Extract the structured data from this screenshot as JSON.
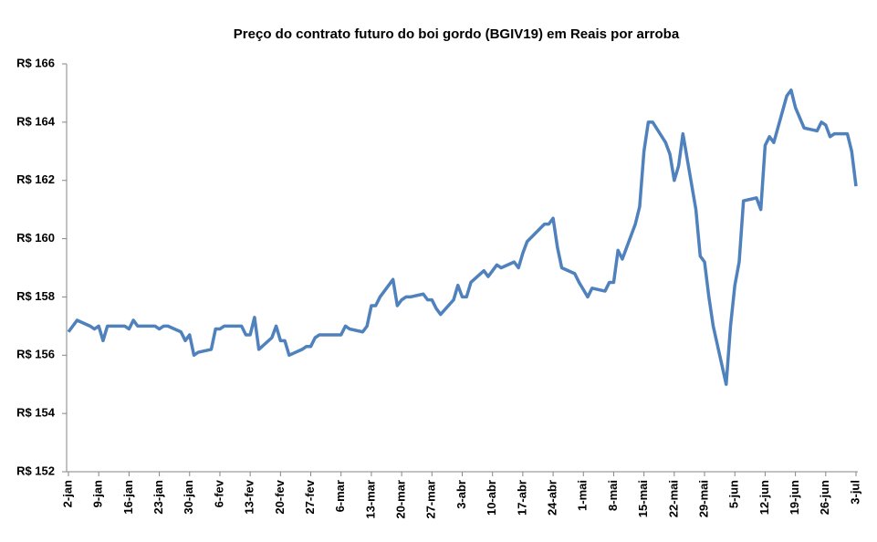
{
  "chart_data": {
    "type": "line",
    "title": "Preço do contrato futuro do boi gordo (BGIV19) em Reais por arroba",
    "x": [
      0,
      1,
      2,
      5,
      6,
      7,
      8,
      9,
      12,
      13,
      14,
      15,
      16,
      19,
      20,
      21,
      22,
      23,
      26,
      27,
      28,
      29,
      30,
      33,
      34,
      35,
      36,
      37,
      40,
      41,
      42,
      43,
      44,
      47,
      48,
      49,
      50,
      51,
      54,
      55,
      56,
      57,
      58,
      63,
      64,
      65,
      68,
      69,
      70,
      71,
      72,
      75,
      76,
      77,
      78,
      79,
      82,
      83,
      84,
      85,
      86,
      89,
      90,
      91,
      92,
      93,
      96,
      97,
      98,
      99,
      100,
      103,
      104,
      105,
      106,
      110,
      111,
      112,
      113,
      114,
      117,
      118,
      120,
      121,
      124,
      125,
      126,
      127,
      128,
      131,
      132,
      133,
      134,
      135,
      138,
      139,
      140,
      141,
      142,
      145,
      146,
      147,
      148,
      149,
      152,
      153,
      154,
      155,
      156,
      159,
      160,
      161,
      162,
      163,
      166,
      167,
      168,
      170,
      173,
      174,
      175,
      176,
      177,
      180,
      181,
      182
    ],
    "series": [
      {
        "name": "BGIV19",
        "color": "#4f81bd",
        "values": [
          156.8,
          157.0,
          157.2,
          157.0,
          156.9,
          157.0,
          156.5,
          157.0,
          157.0,
          157.0,
          156.9,
          157.2,
          157.0,
          157.0,
          157.0,
          156.9,
          157.0,
          157.0,
          156.8,
          156.5,
          156.7,
          156.0,
          156.1,
          156.2,
          156.9,
          156.9,
          157.0,
          157.0,
          157.0,
          156.7,
          156.7,
          157.3,
          156.2,
          156.6,
          157.0,
          156.5,
          156.5,
          156.0,
          156.2,
          156.3,
          156.3,
          156.6,
          156.7,
          156.7,
          157.0,
          156.9,
          156.8,
          157.0,
          157.7,
          157.7,
          158.0,
          158.6,
          157.7,
          157.9,
          158.0,
          158.0,
          158.1,
          157.9,
          157.9,
          157.6,
          157.4,
          157.9,
          158.4,
          158.0,
          158.0,
          158.5,
          158.9,
          158.7,
          158.9,
          159.1,
          159.0,
          159.2,
          159.0,
          159.5,
          159.9,
          160.5,
          160.5,
          160.7,
          159.7,
          159.0,
          158.8,
          158.5,
          158.0,
          158.3,
          158.2,
          158.5,
          158.5,
          159.6,
          159.3,
          160.5,
          161.1,
          163.0,
          164.0,
          164.0,
          163.3,
          162.9,
          162.0,
          162.5,
          163.6,
          161.0,
          159.4,
          159.2,
          158.0,
          157.0,
          155.0,
          157.0,
          158.4,
          159.2,
          161.3,
          161.4,
          161.0,
          163.2,
          163.5,
          163.3,
          164.9,
          165.1,
          164.5,
          163.8,
          163.7,
          164.0,
          163.9,
          163.5,
          163.6,
          163.6,
          163.0,
          161.8
        ]
      }
    ],
    "xlim": [
      0,
      182
    ],
    "xticks": [
      {
        "value": 0,
        "label": "2-jan"
      },
      {
        "value": 7,
        "label": "9-jan"
      },
      {
        "value": 14,
        "label": "16-jan"
      },
      {
        "value": 21,
        "label": "23-jan"
      },
      {
        "value": 28,
        "label": "30-jan"
      },
      {
        "value": 35,
        "label": "6-fev"
      },
      {
        "value": 42,
        "label": "13-fev"
      },
      {
        "value": 49,
        "label": "20-fev"
      },
      {
        "value": 56,
        "label": "27-fev"
      },
      {
        "value": 63,
        "label": "6-mar"
      },
      {
        "value": 70,
        "label": "13-mar"
      },
      {
        "value": 77,
        "label": "20-mar"
      },
      {
        "value": 84,
        "label": "27-mar"
      },
      {
        "value": 91,
        "label": "3-abr"
      },
      {
        "value": 98,
        "label": "10-abr"
      },
      {
        "value": 105,
        "label": "17-abr"
      },
      {
        "value": 112,
        "label": "24-abr"
      },
      {
        "value": 119,
        "label": "1-mai"
      },
      {
        "value": 126,
        "label": "8-mai"
      },
      {
        "value": 133,
        "label": "15-mai"
      },
      {
        "value": 140,
        "label": "22-mai"
      },
      {
        "value": 147,
        "label": "29-mai"
      },
      {
        "value": 154,
        "label": "5-jun"
      },
      {
        "value": 161,
        "label": "12-jun"
      },
      {
        "value": 168,
        "label": "19-jun"
      },
      {
        "value": 175,
        "label": "26-jun"
      },
      {
        "value": 182,
        "label": "3-jul"
      }
    ],
    "ylim": [
      152,
      166
    ],
    "yticks": [
      {
        "value": 152,
        "label": "R$ 152"
      },
      {
        "value": 154,
        "label": "R$ 154"
      },
      {
        "value": 156,
        "label": "R$ 156"
      },
      {
        "value": 158,
        "label": "R$ 158"
      },
      {
        "value": 160,
        "label": "R$ 160"
      },
      {
        "value": 162,
        "label": "R$ 162"
      },
      {
        "value": 164,
        "label": "R$ 164"
      },
      {
        "value": 166,
        "label": "R$ 166"
      }
    ],
    "grid": false
  }
}
